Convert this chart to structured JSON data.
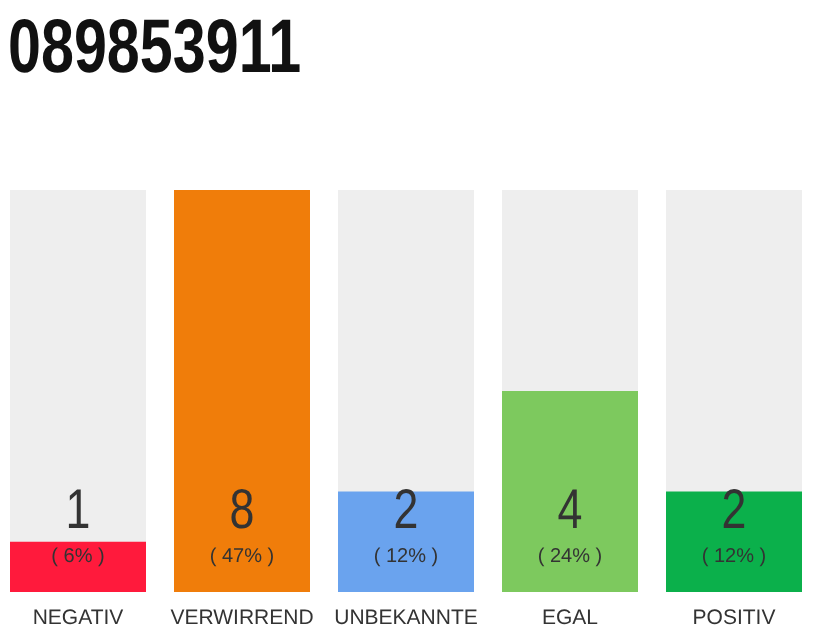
{
  "chart_data": {
    "type": "bar",
    "title": "089853911",
    "categories": [
      "NEGATIV",
      "VERWIRREND",
      "UNBEKANNTE",
      "EGAL",
      "POSITIV"
    ],
    "values": [
      1,
      8,
      2,
      4,
      2
    ],
    "colors": [
      "#ff1a3c",
      "#f07d0a",
      "#6aa3ee",
      "#7dc95e",
      "#0bb04b"
    ],
    "value_labels": [
      "1",
      "8",
      "2",
      "4",
      "2"
    ],
    "annotations": [
      "( 6% )",
      "( 47% )",
      "( 12% )",
      "( 24% )",
      "( 12% )"
    ]
  }
}
